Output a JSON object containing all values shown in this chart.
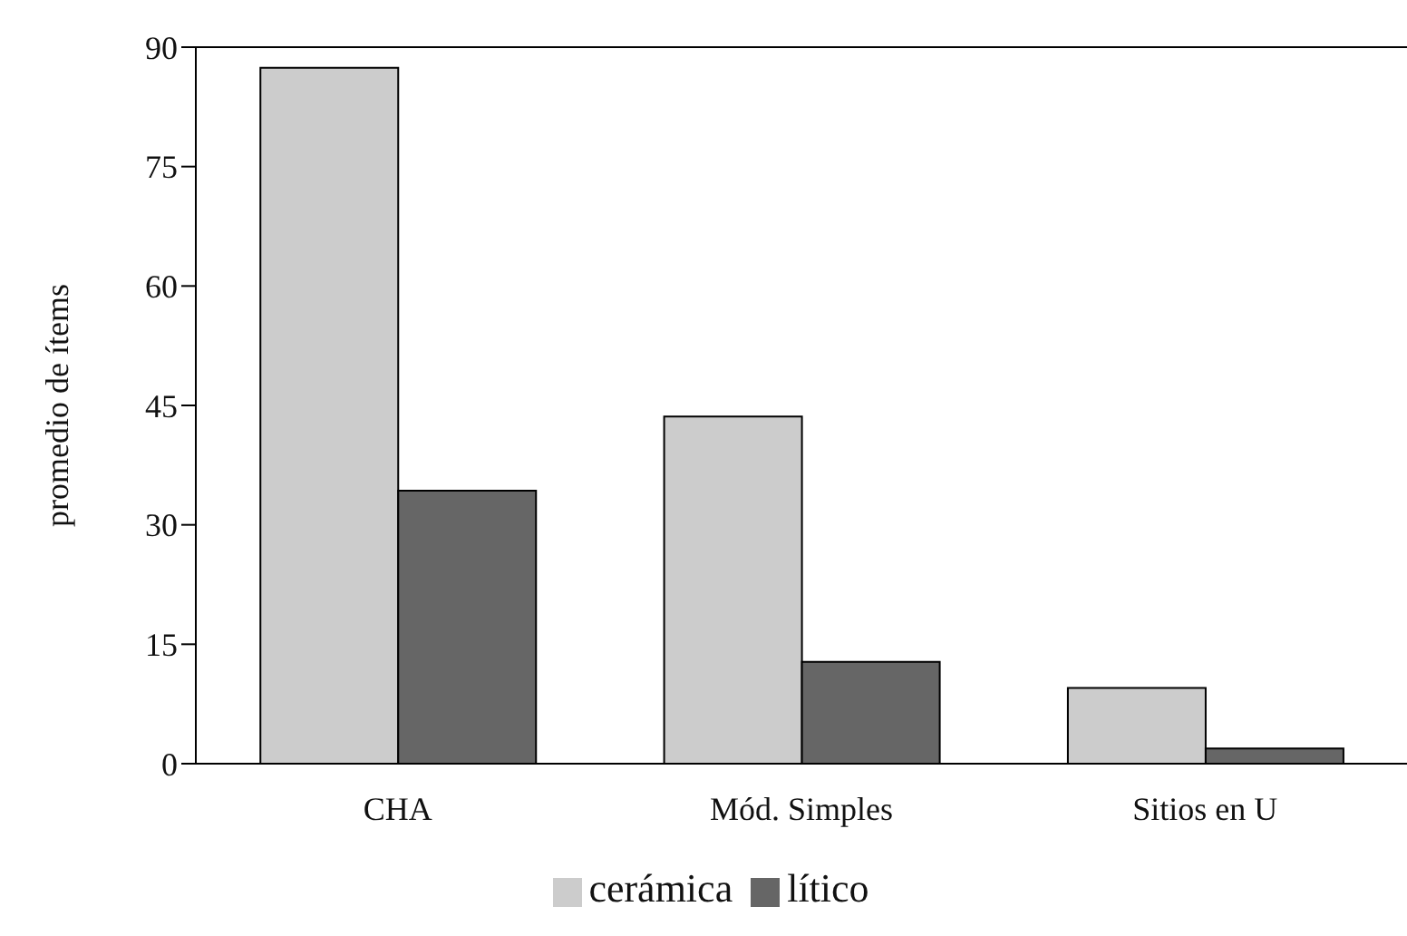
{
  "chart_data": {
    "type": "bar",
    "ylabel": "promedio de ítems",
    "categories": [
      "CHA",
      "Mód. Simples",
      "Sitios en U"
    ],
    "series": [
      {
        "name": "cerámica",
        "color": "#cccccc",
        "values": [
          87.4,
          43.6,
          9.5
        ]
      },
      {
        "name": "lítico",
        "color": "#666666",
        "values": [
          34.3,
          12.8,
          1.9
        ]
      }
    ],
    "ylim": [
      0,
      90
    ],
    "yticks": [
      0,
      15,
      30,
      45,
      60,
      75,
      90
    ],
    "grid": false,
    "legend": "bottom"
  }
}
